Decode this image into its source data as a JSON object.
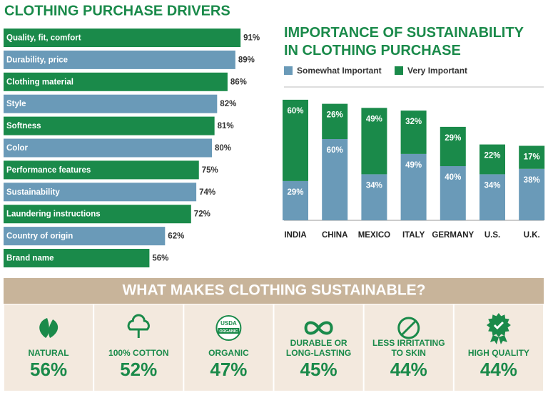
{
  "chart_data": [
    {
      "type": "hbar",
      "title": "CLOTHING PURCHASE DRIVERS",
      "categories": [
        "Quality, fit, comfort",
        "Durability, price",
        "Clothing material",
        "Style",
        "Softness",
        "Color",
        "Performance features",
        "Sustainability",
        "Laundering instructions",
        "Country of origin",
        "Brand name"
      ],
      "values": [
        91,
        89,
        86,
        82,
        81,
        80,
        75,
        74,
        72,
        62,
        56
      ],
      "value_labels": [
        "91%",
        "89%",
        "86%",
        "82%",
        "81%",
        "80%",
        "75%",
        "74%",
        "72%",
        "62%",
        "56%"
      ],
      "colors": [
        "#1a8a4a",
        "#6a9ab8",
        "#1a8a4a",
        "#6a9ab8",
        "#1a8a4a",
        "#6a9ab8",
        "#1a8a4a",
        "#6a9ab8",
        "#1a8a4a",
        "#6a9ab8",
        "#1a8a4a"
      ]
    },
    {
      "type": "stacked_bar",
      "title": "IMPORTANCE OF SUSTAINABILITY IN CLOTHING PURCHASE",
      "categories": [
        "INDIA",
        "CHINA",
        "MEXICO",
        "ITALY",
        "GERMANY",
        "U.S.",
        "U.K."
      ],
      "series": [
        {
          "name": "Somewhat Important",
          "color": "#6a9ab8",
          "values": [
            29,
            60,
            34,
            49,
            40,
            34,
            38
          ],
          "value_labels": [
            "29%",
            "60%",
            "34%",
            "49%",
            "40%",
            "34%",
            "38%"
          ]
        },
        {
          "name": "Very Important",
          "color": "#1a8a4a",
          "values": [
            60,
            26,
            49,
            32,
            29,
            22,
            17
          ],
          "value_labels": [
            "60%",
            "26%",
            "49%",
            "32%",
            "29%",
            "22%",
            "17%"
          ]
        }
      ]
    }
  ],
  "panel": {
    "title": "WHAT MAKES CLOTHING SUSTAINABLE?",
    "items": [
      {
        "label": [
          "NATURAL"
        ],
        "value": "56%"
      },
      {
        "label": [
          "100% COTTON"
        ],
        "value": "52%"
      },
      {
        "label": [
          "ORGANIC"
        ],
        "value": "47%",
        "icon_text": [
          "USDA",
          "ORGANIC"
        ]
      },
      {
        "label": [
          "DURABLE OR",
          "LONG-LASTING"
        ],
        "value": "45%"
      },
      {
        "label": [
          "LESS IRRITATING",
          "TO SKIN"
        ],
        "value": "44%"
      },
      {
        "label": [
          "HIGH QUALITY"
        ],
        "value": "44%"
      }
    ]
  }
}
